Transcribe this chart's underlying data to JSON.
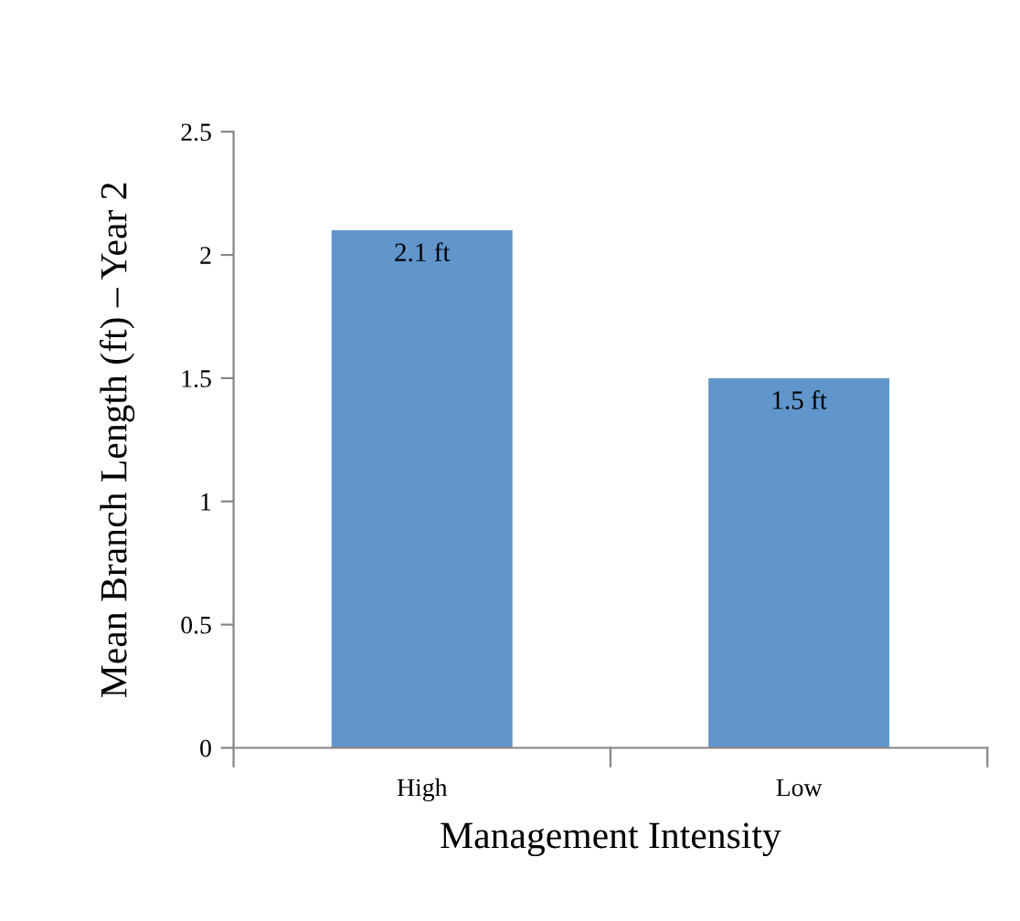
{
  "chart_data": {
    "type": "bar",
    "categories": [
      "High",
      "Low"
    ],
    "values": [
      2.1,
      1.5
    ],
    "value_labels": [
      "2.1 ft",
      "1.5 ft"
    ],
    "color": "#6096cc",
    "xlabel": "Management Intensity",
    "ylabel": "Mean Branch Length (ft) – Year 2",
    "ylim": [
      0,
      2.5
    ],
    "yticks": [
      0,
      0.5,
      1,
      1.5,
      2,
      2.5
    ],
    "grid": false,
    "legend": false
  }
}
